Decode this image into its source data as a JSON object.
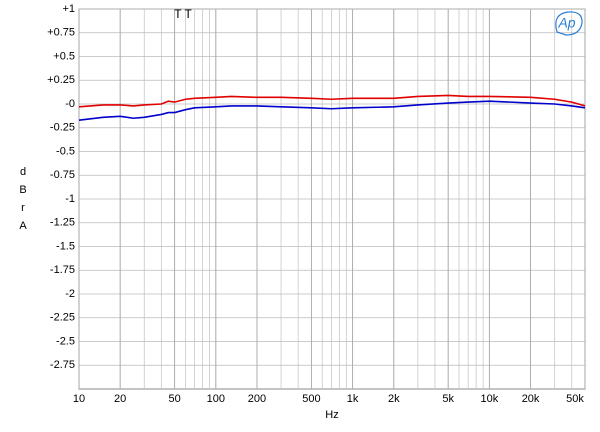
{
  "chart_data": {
    "type": "line",
    "annotation": "T T",
    "logo": "Ap",
    "x_label": "Hz",
    "y_label": "dBr A",
    "log_x": true,
    "grid": true,
    "x": [
      10,
      15,
      20,
      25,
      30,
      40,
      45,
      50,
      60,
      70,
      100,
      130,
      200,
      300,
      500,
      700,
      1000,
      2000,
      3000,
      5000,
      7000,
      10000,
      20000,
      30000,
      40000,
      50000
    ],
    "series": [
      {
        "color": "#e00000",
        "values": [
          -0.03,
          -0.01,
          -0.01,
          -0.02,
          -0.01,
          0.0,
          0.03,
          0.02,
          0.05,
          0.06,
          0.07,
          0.08,
          0.07,
          0.07,
          0.06,
          0.05,
          0.06,
          0.06,
          0.08,
          0.09,
          0.08,
          0.08,
          0.07,
          0.05,
          0.02,
          -0.02
        ]
      },
      {
        "color": "#0000cc",
        "values": [
          -0.17,
          -0.14,
          -0.13,
          -0.15,
          -0.14,
          -0.11,
          -0.09,
          -0.09,
          -0.06,
          -0.04,
          -0.03,
          -0.02,
          -0.02,
          -0.03,
          -0.04,
          -0.05,
          -0.04,
          -0.03,
          -0.01,
          0.01,
          0.02,
          0.03,
          0.01,
          0.0,
          -0.02,
          -0.04
        ]
      }
    ],
    "xlim": [
      10,
      50000
    ],
    "xticks": [
      10,
      20,
      50,
      100,
      200,
      500,
      {
        "value": 1000,
        "label": "1k"
      },
      {
        "value": 2000,
        "label": "2k"
      },
      {
        "value": 5000,
        "label": "5k"
      },
      {
        "value": 10000,
        "label": "10k"
      },
      {
        "value": 20000,
        "label": "20k"
      },
      {
        "value": 50000,
        "label": "50k"
      }
    ],
    "ylim": [
      -3,
      1
    ],
    "yticks": [
      {
        "value": 1,
        "label": "+1"
      },
      {
        "value": 0.75,
        "label": "+0.75"
      },
      {
        "value": 0.5,
        "label": "+0.5"
      },
      {
        "value": 0.25,
        "label": "+0.25"
      },
      {
        "value": 0,
        "label": "-0"
      },
      -0.25,
      -0.5,
      -0.75,
      -1,
      -1.25,
      -1.5,
      -1.75,
      -2,
      -2.25,
      -2.5,
      -2.75
    ]
  }
}
